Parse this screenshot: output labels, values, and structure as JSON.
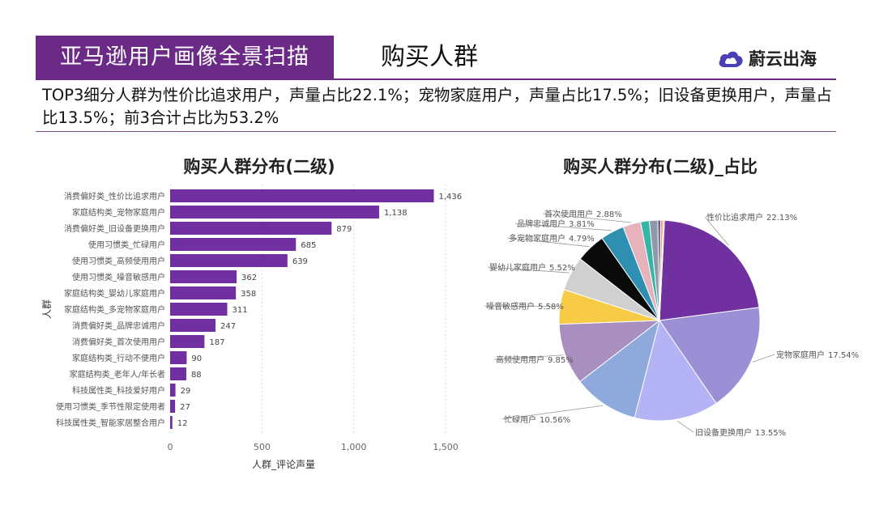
{
  "header": {
    "title": "亚马逊用户画像全景扫描",
    "section": "购买人群",
    "brand": "蔚云出海"
  },
  "summary": "TOP3细分人群为性价比追求用户，声量占比22.1%；宠物家庭用户，声量占比17.5%；旧设备更换用户，声量占比13.5%；前3合计占比为53.2%",
  "colors": {
    "accent": "#6a2a86",
    "bar": "#7030a0"
  },
  "chart_data": [
    {
      "type": "bar",
      "orientation": "horizontal",
      "title": "购买人群分布(二级)",
      "xlabel": "人群_评论声量",
      "ylabel": "人群",
      "xlim": [
        0,
        1500
      ],
      "xticks": [
        0,
        500,
        1000,
        1500
      ],
      "xtick_labels": [
        "0",
        "500",
        "1,000",
        "1,500"
      ],
      "categories": [
        "消费偏好类_性价比追求用户",
        "家庭结构类_宠物家庭用户",
        "消费偏好类_旧设备更换用户",
        "使用习惯类_忙碌用户",
        "使用习惯类_高频使用用户",
        "使用习惯类_噪音敏感用户",
        "家庭结构类_婴幼儿家庭用户",
        "家庭结构类_多宠物家庭用户",
        "消费偏好类_品牌忠诚用户",
        "消费偏好类_首次使用用户",
        "家庭结构类_行动不便用户",
        "家庭结构类_老年人/年长者",
        "科技属性类_科技爱好用户",
        "使用习惯类_季节性限定使用者",
        "科技属性类_智能家居整合用户"
      ],
      "values": [
        1436,
        1138,
        879,
        685,
        639,
        362,
        358,
        311,
        247,
        187,
        90,
        88,
        29,
        27,
        12
      ],
      "value_labels": [
        "1,436",
        "1,138",
        "879",
        "685",
        "639",
        "362",
        "358",
        "311",
        "247",
        "187",
        "90",
        "88",
        "29",
        "27",
        "12"
      ]
    },
    {
      "type": "pie",
      "title": "购买人群分布(二级)_占比",
      "slices": [
        {
          "label": "性价比追求用户",
          "pct": "22.13%",
          "value": 22.13,
          "color": "#7030a0"
        },
        {
          "label": "宠物家庭用户",
          "pct": "17.54%",
          "value": 17.54,
          "color": "#9b8fd6"
        },
        {
          "label": "旧设备更换用户",
          "pct": "13.55%",
          "value": 13.55,
          "color": "#b3b3f5"
        },
        {
          "label": "忙碌用户",
          "pct": "10.56%",
          "value": 10.56,
          "color": "#8ea9db"
        },
        {
          "label": "高频使用用户",
          "pct": "9.85%",
          "value": 9.85,
          "color": "#a98fbf"
        },
        {
          "label": "噪音敏感用户",
          "pct": "5.58%",
          "value": 5.58,
          "color": "#f7cb45"
        },
        {
          "label": "婴幼儿家庭用户",
          "pct": "5.52%",
          "value": 5.52,
          "color": "#d0d0d0"
        },
        {
          "label": "多宠物家庭用户",
          "pct": "4.79%",
          "value": 4.79,
          "color": "#0a0a0a"
        },
        {
          "label": "品牌忠诚用户",
          "pct": "3.81%",
          "value": 3.81,
          "color": "#2e8fb0"
        },
        {
          "label": "首次使用用户",
          "pct": "2.88%",
          "value": 2.88,
          "color": "#e6b3bd"
        },
        {
          "label": "",
          "pct": "",
          "value": 1.39,
          "color": "#35b5a5"
        },
        {
          "label": "",
          "pct": "",
          "value": 1.36,
          "color": "#8f9aa8"
        },
        {
          "label": "",
          "pct": "",
          "value": 0.45,
          "color": "#5c4a8a"
        },
        {
          "label": "",
          "pct": "",
          "value": 0.42,
          "color": "#f2a36b"
        },
        {
          "label": "",
          "pct": "",
          "value": 0.19,
          "color": "#c48ad0"
        }
      ]
    }
  ]
}
